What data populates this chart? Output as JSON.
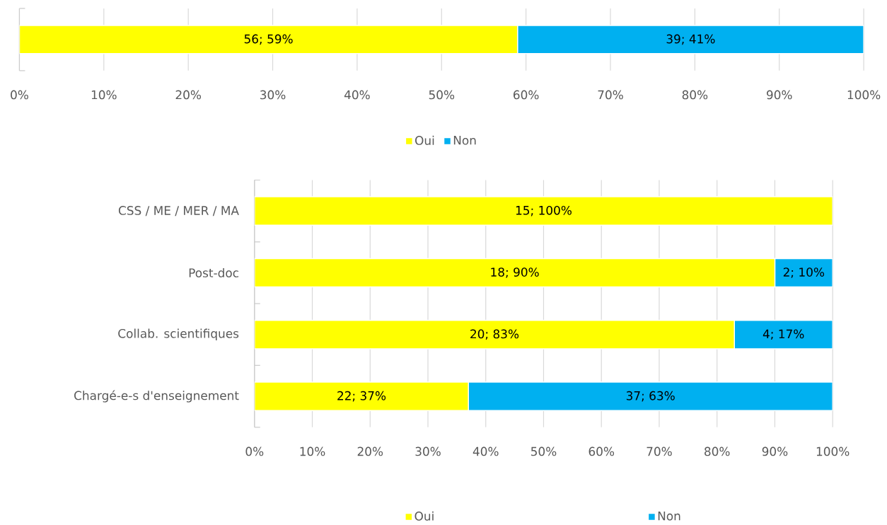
{
  "chart_data": [
    {
      "type": "bar",
      "orientation": "horizontal",
      "stacked": true,
      "categories": [
        null
      ],
      "xlim": [
        0,
        100
      ],
      "xticks": [
        {
          "value": 0,
          "label": "0%"
        },
        {
          "value": 10,
          "label": "10%"
        },
        {
          "value": 20,
          "label": "20%"
        },
        {
          "value": 30,
          "label": "30%"
        },
        {
          "value": 40,
          "label": "40%"
        },
        {
          "value": 50,
          "label": "50%"
        },
        {
          "value": 60,
          "label": "60%"
        },
        {
          "value": 70,
          "label": "70%"
        },
        {
          "value": 80,
          "label": "80%"
        },
        {
          "value": 90,
          "label": "90%"
        },
        {
          "value": 100,
          "label": "100%"
        }
      ],
      "grid": "x",
      "legend": "bottom",
      "series": [
        {
          "name": "Oui",
          "color": "#ffff00",
          "values": [
            59
          ],
          "value_labels": [
            "56; 59%"
          ]
        },
        {
          "name": "Non",
          "color": "#00b0f0",
          "values": [
            41
          ],
          "value_labels": [
            "39; 41%"
          ]
        }
      ]
    },
    {
      "type": "bar",
      "orientation": "horizontal",
      "stacked": true,
      "categories": [
        "CSS / ME / MER / MA",
        "Post-doc",
        "Collab. scientifiques",
        "Chargé-e-s d'enseignement"
      ],
      "xlim": [
        0,
        100
      ],
      "xticks": [
        {
          "value": 0,
          "label": "0%"
        },
        {
          "value": 10,
          "label": "10%"
        },
        {
          "value": 20,
          "label": "20%"
        },
        {
          "value": 30,
          "label": "30%"
        },
        {
          "value": 40,
          "label": "40%"
        },
        {
          "value": 50,
          "label": "50%"
        },
        {
          "value": 60,
          "label": "60%"
        },
        {
          "value": 70,
          "label": "70%"
        },
        {
          "value": 80,
          "label": "80%"
        },
        {
          "value": 90,
          "label": "90%"
        },
        {
          "value": 100,
          "label": "100%"
        }
      ],
      "grid": "x",
      "legend": "bottom",
      "series": [
        {
          "name": "Oui",
          "color": "#ffff00",
          "values": [
            100,
            90,
            83,
            37
          ],
          "value_labels": [
            "15; 100%",
            "18; 90%",
            "20; 83%",
            "22; 37%"
          ]
        },
        {
          "name": "Non",
          "color": "#00b0f0",
          "values": [
            0,
            10,
            17,
            63
          ],
          "value_labels": [
            null,
            "2; 10%",
            "4; 17%",
            "37; 63%"
          ]
        }
      ]
    }
  ]
}
